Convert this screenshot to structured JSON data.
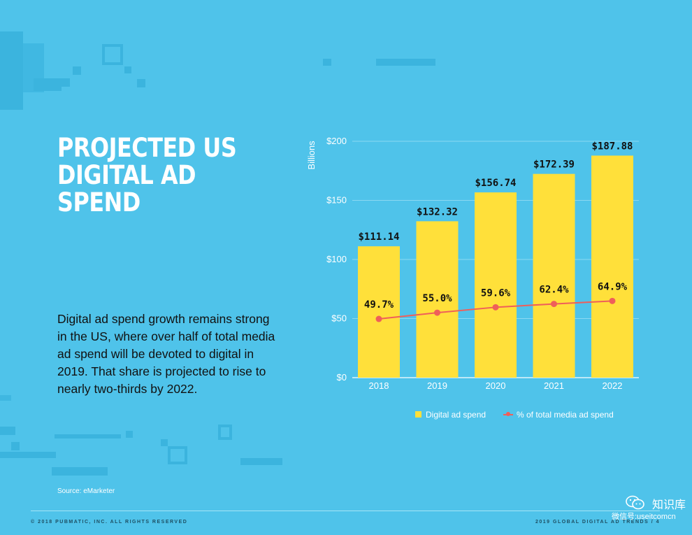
{
  "page": {
    "title_line1": "PROJECTED US",
    "title_line2": "DIGITAL AD SPEND",
    "body": "Digital ad spend growth remains strong in the US, where over half of total media ad spend will be devoted to digital in 2019. That share is projected to rise to nearly two-thirds by 2022.",
    "source": "Source: eMarketer",
    "footer_left": "© 2018 PUBMATIC, INC. ALL RIGHTS RESERVED",
    "footer_right": "2019 GLOBAL DIGITAL AD TRENDS  /  4",
    "watermark_main": "知识库",
    "watermark_sub": "微信号:useitcomcn"
  },
  "colors": {
    "background": "#4fc3ea",
    "bar": "#ffe03a",
    "line": "#ef5f5a",
    "title": "#ffffff"
  },
  "chart_data": {
    "type": "bar",
    "categories": [
      "2018",
      "2019",
      "2020",
      "2021",
      "2022"
    ],
    "ylabel": "Billions",
    "ylim": [
      0,
      200
    ],
    "yticks": [
      0,
      50,
      100,
      150,
      200
    ],
    "ytick_labels": [
      "$0",
      "$50",
      "$100",
      "$150",
      "$200"
    ],
    "grid": true,
    "series": [
      {
        "name": "Digital ad spend",
        "type": "bar",
        "values": [
          111.14,
          132.32,
          156.74,
          172.39,
          187.88
        ],
        "labels": [
          "$111.14",
          "$132.32",
          "$156.74",
          "$172.39",
          "$187.88"
        ]
      },
      {
        "name": "% of total media ad spend",
        "type": "line",
        "values": [
          49.7,
          55.0,
          59.6,
          62.4,
          64.9
        ],
        "labels": [
          "49.7%",
          "55.0%",
          "59.6%",
          "62.4%",
          "64.9%"
        ]
      }
    ],
    "legend": [
      "Digital ad spend",
      "% of total media ad spend"
    ],
    "legend_position": "bottom"
  }
}
